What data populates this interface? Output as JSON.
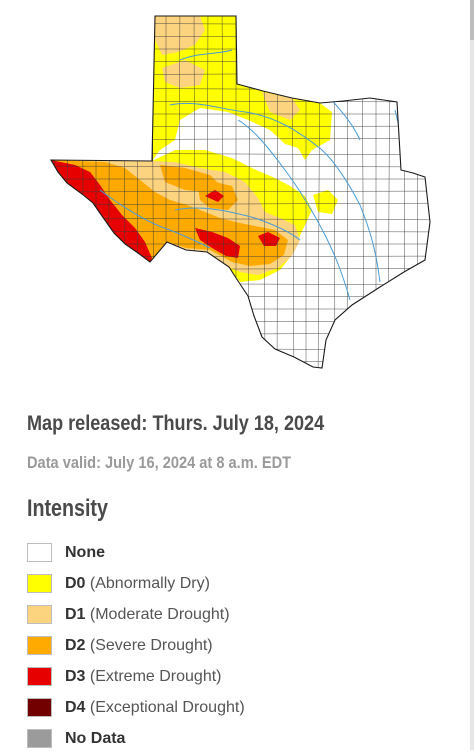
{
  "map": {
    "released": "Map released: Thurs. July 18, 2024",
    "valid": "Data valid: July 16, 2024 at 8 a.m. EDT"
  },
  "legend": {
    "title": "Intensity",
    "items": [
      {
        "code": "None",
        "desc": "",
        "color": "#ffffff"
      },
      {
        "code": "D0",
        "desc": " (Abnormally Dry)",
        "color": "#ffff00"
      },
      {
        "code": "D1",
        "desc": " (Moderate Drought)",
        "color": "#fcd37f"
      },
      {
        "code": "D2",
        "desc": " (Severe Drought)",
        "color": "#ffaa00"
      },
      {
        "code": "D3",
        "desc": " (Extreme Drought)",
        "color": "#e60000"
      },
      {
        "code": "D4",
        "desc": " (Exceptional Drought)",
        "color": "#730000"
      },
      {
        "code": "No Data",
        "desc": "",
        "color": "#9b9b9b"
      }
    ]
  }
}
